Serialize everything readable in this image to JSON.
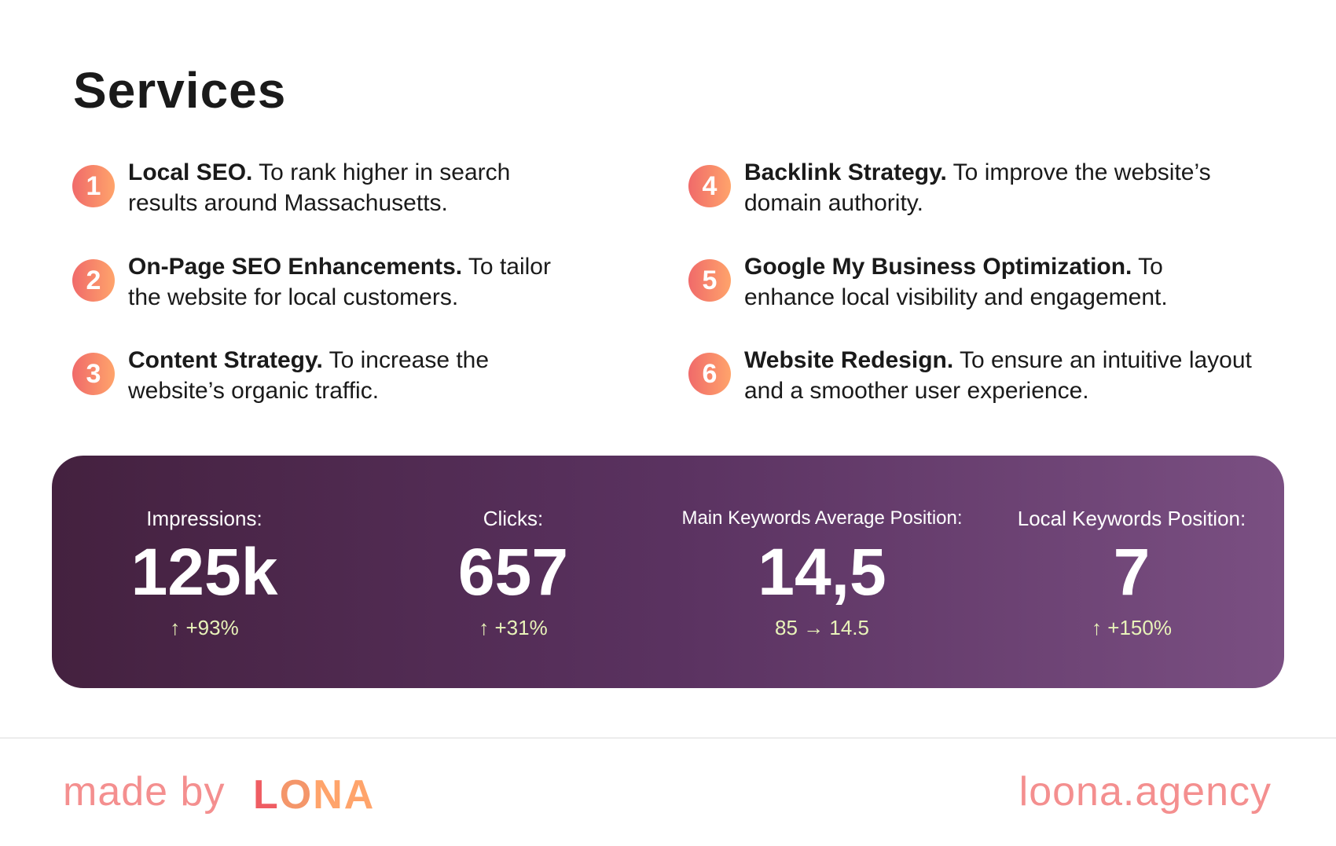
{
  "title": "Services",
  "services": [
    {
      "num": "1",
      "name": "Local SEO.",
      "desc": " To rank higher in search results around Massachusetts."
    },
    {
      "num": "2",
      "name": "On-Page SEO Enhancements.",
      "desc": " To tailor the website for local customers."
    },
    {
      "num": "3",
      "name": "Content Strategy.",
      "desc": " To increase the website’s organic traffic."
    },
    {
      "num": "4",
      "name": "Backlink Strategy.",
      "desc": " To improve the website’s domain authority."
    },
    {
      "num": "5",
      "name": "Google My Business Optimization.",
      "desc": " To enhance local visibility and engagement."
    },
    {
      "num": "6",
      "name": "Website Redesign.",
      "desc": " To ensure an intuitive layout and a smoother user experience."
    }
  ],
  "stats": [
    {
      "label": "Impressions:",
      "value": "125k",
      "change": "↑ +93%"
    },
    {
      "label": "Clicks:",
      "value": "657",
      "change": "↑ +31%"
    },
    {
      "label": "Main Keywords Average Position:",
      "value": "14,5",
      "change": "85 → 14.5"
    },
    {
      "label": "Local Keywords Position:",
      "value": "7",
      "change": "↑ +150%"
    }
  ],
  "footer": {
    "made_by": "made by",
    "logo": {
      "l": "L",
      "o": "O",
      "na": "NA"
    },
    "site": "loona.agency"
  },
  "colors": {
    "accent_start": "#f06a6a",
    "accent_end": "#ffa46b",
    "panel_start": "#44213f",
    "panel_end": "#7a4f82",
    "change_text": "#e8f3b9",
    "footer_text": "#f48f8f"
  }
}
